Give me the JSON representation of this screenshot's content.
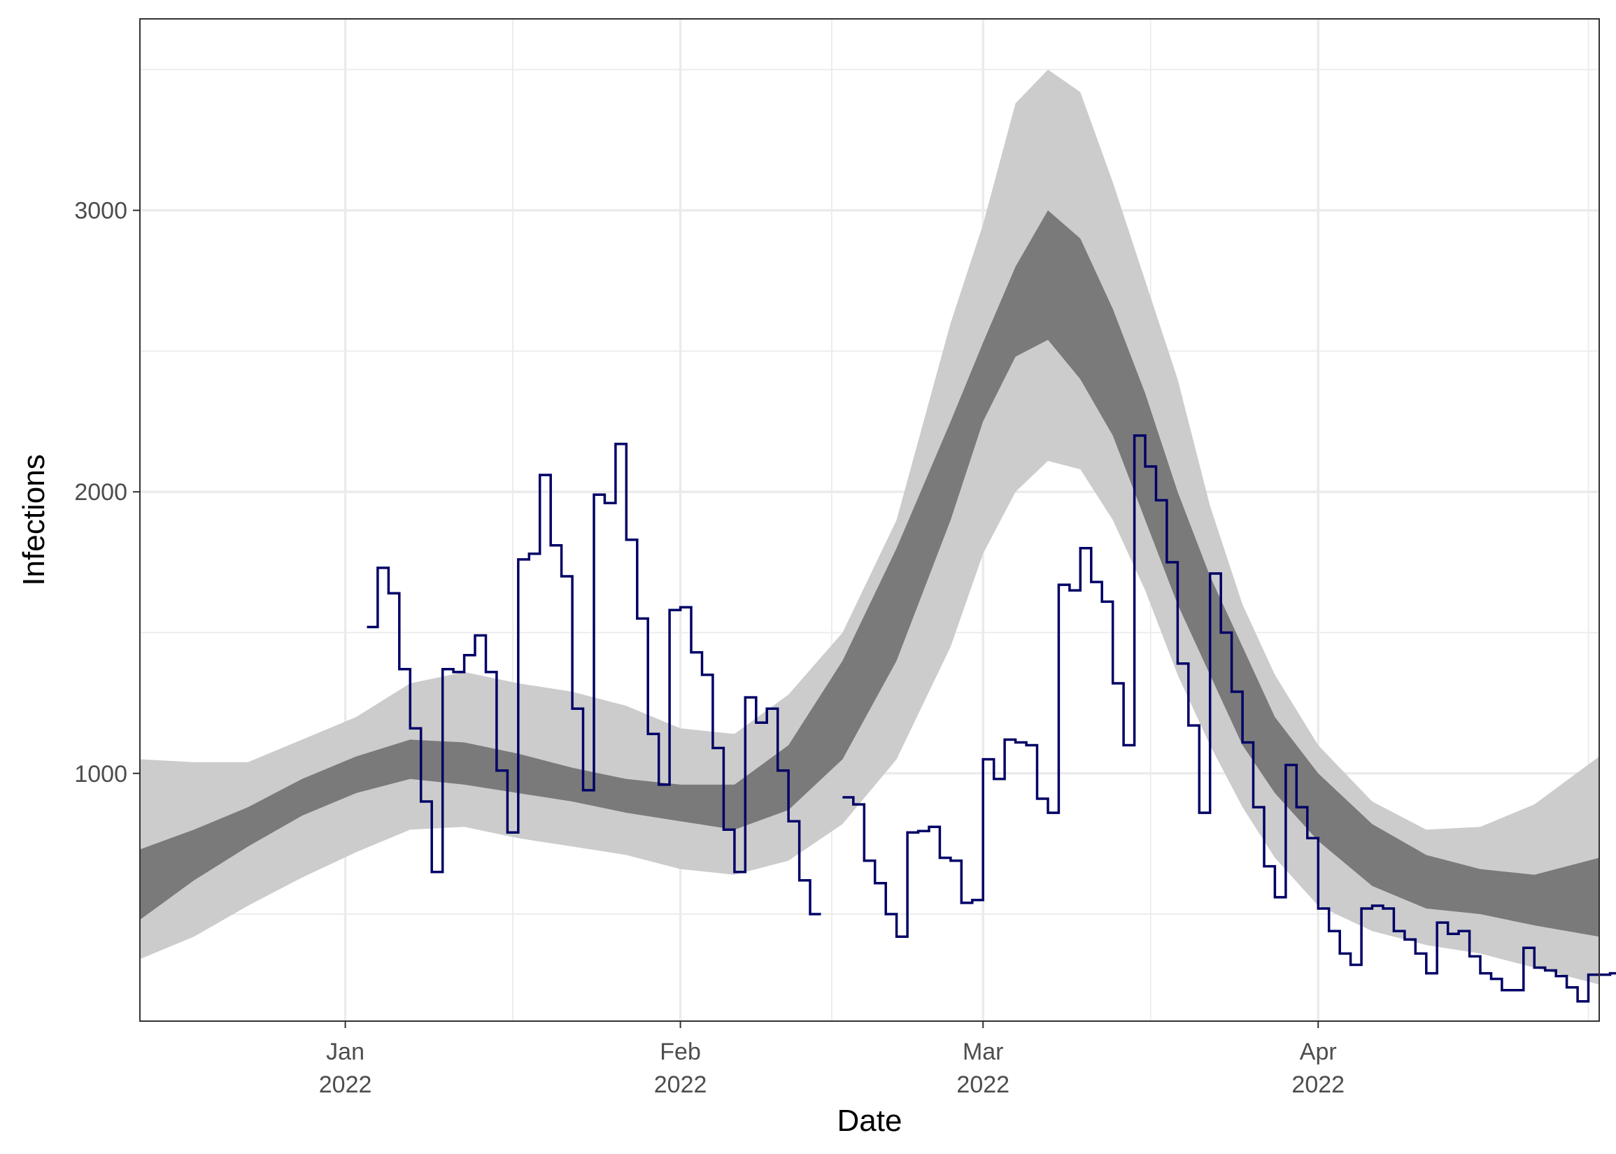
{
  "chart_data": {
    "type": "line",
    "xlabel": "Date",
    "ylabel": "Infections",
    "xlim": [
      "2021-12-13",
      "2022-04-27"
    ],
    "ylim": [
      120,
      3680
    ],
    "grid": true,
    "x_ticks": [
      {
        "date": "2022-01-01",
        "label_month": "Jan",
        "label_year": "2022"
      },
      {
        "date": "2022-02-01",
        "label_month": "Feb",
        "label_year": "2022"
      },
      {
        "date": "2022-03-01",
        "label_month": "Mar",
        "label_year": "2022"
      },
      {
        "date": "2022-04-01",
        "label_month": "Apr",
        "label_year": "2022"
      }
    ],
    "y_ticks": [
      {
        "value": 1000,
        "label": "1000"
      },
      {
        "value": 2000,
        "label": "2000"
      },
      {
        "value": 3000,
        "label": "3000"
      }
    ],
    "colors": {
      "observed": "#000066",
      "inner_band": "#7a7a7a",
      "outer_band": "#cccccc",
      "grid": "#ebebeb",
      "panel_border": "#333333"
    },
    "bands": {
      "dates": [
        "2021-12-13",
        "2021-12-18",
        "2021-12-23",
        "2021-12-28",
        "2022-01-02",
        "2022-01-07",
        "2022-01-12",
        "2022-01-17",
        "2022-01-22",
        "2022-01-27",
        "2022-02-01",
        "2022-02-06",
        "2022-02-11",
        "2022-02-16",
        "2022-02-21",
        "2022-02-26",
        "2022-03-01",
        "2022-03-04",
        "2022-03-07",
        "2022-03-10",
        "2022-03-13",
        "2022-03-16",
        "2022-03-19",
        "2022-03-22",
        "2022-03-25",
        "2022-03-28",
        "2022-04-01",
        "2022-04-06",
        "2022-04-11",
        "2022-04-16",
        "2022-04-21",
        "2022-04-27"
      ],
      "outer_upper": [
        1050,
        1040,
        1040,
        1120,
        1200,
        1320,
        1360,
        1320,
        1290,
        1240,
        1160,
        1140,
        1280,
        1500,
        1900,
        2600,
        2950,
        3380,
        3500,
        3420,
        3100,
        2750,
        2400,
        1950,
        1600,
        1350,
        1100,
        900,
        800,
        810,
        890,
        1060
      ],
      "inner_upper": [
        730,
        800,
        880,
        980,
        1060,
        1120,
        1110,
        1070,
        1020,
        980,
        960,
        960,
        1100,
        1400,
        1800,
        2250,
        2530,
        2800,
        3000,
        2900,
        2650,
        2350,
        2000,
        1700,
        1450,
        1200,
        1000,
        820,
        710,
        660,
        640,
        700
      ],
      "inner_lower": [
        480,
        620,
        740,
        850,
        930,
        980,
        960,
        930,
        900,
        860,
        830,
        800,
        870,
        1050,
        1400,
        1900,
        2250,
        2480,
        2540,
        2400,
        2200,
        1900,
        1600,
        1350,
        1100,
        930,
        760,
        600,
        520,
        500,
        460,
        420
      ],
      "outer_lower": [
        340,
        420,
        530,
        630,
        720,
        800,
        810,
        770,
        740,
        710,
        660,
        640,
        690,
        820,
        1050,
        1450,
        1780,
        2000,
        2110,
        2080,
        1900,
        1650,
        1350,
        1100,
        880,
        700,
        530,
        440,
        390,
        360,
        310,
        250
      ]
    },
    "observed": {
      "start": "2022-01-03",
      "step_days": 1,
      "segments": [
        [
          1520,
          1730,
          1640,
          1370,
          1160,
          900,
          650,
          1370,
          1360,
          1420,
          1490,
          1360,
          1010,
          790,
          1760,
          1780,
          2060,
          1810,
          1700,
          1230,
          940,
          1990,
          1960,
          2170,
          1830,
          1550,
          1140,
          960,
          1580,
          1590,
          1430,
          1350,
          1090,
          800,
          650,
          1270,
          1180,
          1230,
          1010,
          830,
          620,
          500
        ],
        [
          915,
          890,
          690,
          610,
          500,
          420,
          790,
          795,
          810,
          700,
          690,
          540,
          550,
          1050,
          980,
          1120,
          1110,
          1100,
          910,
          860,
          1670,
          1650,
          1800,
          1680,
          1610,
          1320,
          1100,
          2200,
          2090,
          1970,
          1750,
          1390,
          1170,
          860,
          1710,
          1500,
          1290,
          1110,
          880,
          670,
          560,
          1030,
          880,
          770,
          520,
          440,
          360,
          320,
          520,
          530,
          520,
          440,
          410,
          360,
          290,
          470,
          430,
          440,
          350,
          290,
          270,
          230,
          230,
          380,
          310,
          300,
          280,
          240,
          190,
          285,
          285,
          290
        ]
      ]
    }
  }
}
